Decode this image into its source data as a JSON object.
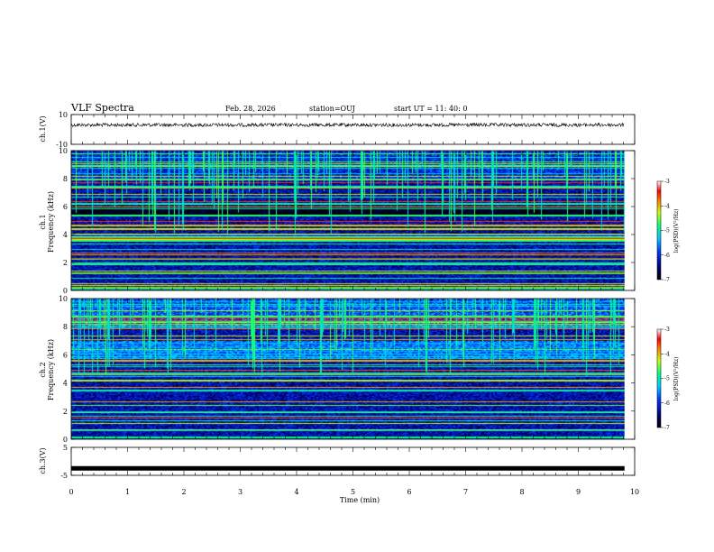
{
  "header": {
    "title": "VLF Spectra",
    "date": "Feb. 28, 2026",
    "station": "station=OUJ",
    "start_ut": "start  UT =   11: 40: 0"
  },
  "chart_data": [
    {
      "type": "line",
      "name": "ch1-waveform",
      "ylabel": "ch.1(V)",
      "ylim": [
        -10,
        10
      ],
      "yticks": [
        "10",
        "-10"
      ],
      "baseline": 3,
      "xlim": [
        0,
        10
      ]
    },
    {
      "type": "heatmap",
      "name": "ch1-spectrogram",
      "ylabel": "ch.1\nFrequency  (kHz)",
      "ylim": [
        0,
        10
      ],
      "yticks": [
        "0",
        "2",
        "4",
        "6",
        "8",
        "10"
      ],
      "xlim": [
        0,
        10
      ],
      "data_end_min": 9.82,
      "colorbar": {
        "label": "log(PSD)(V²/Hz)",
        "range": [
          -7,
          -3
        ],
        "ticks": [
          "-3",
          "-4",
          "-5",
          "-6",
          "-7"
        ]
      }
    },
    {
      "type": "heatmap",
      "name": "ch2-spectrogram",
      "ylabel": "ch.2\nFrequency  (kHz)",
      "ylim": [
        0,
        10
      ],
      "yticks": [
        "0",
        "2",
        "4",
        "6",
        "8",
        "10"
      ],
      "xlim": [
        0,
        10
      ],
      "data_end_min": 9.82,
      "colorbar": {
        "label": "log(PSD)(V²/Hz)",
        "range": [
          -7,
          -3
        ],
        "ticks": [
          "-3",
          "-4",
          "-5",
          "-6",
          "-7"
        ]
      }
    },
    {
      "type": "line",
      "name": "ch3-waveform",
      "ylabel": "ch.3(V)",
      "ylim": [
        -5,
        5
      ],
      "yticks": [
        "5",
        "-5"
      ],
      "baseline": -2.5,
      "xlim": [
        0,
        10
      ]
    }
  ],
  "xaxis": {
    "label": "Time  (min)",
    "ticks": [
      "0",
      "1",
      "2",
      "3",
      "4",
      "5",
      "6",
      "7",
      "8",
      "9",
      "10"
    ]
  },
  "colors": {
    "background": "#000e6e",
    "axis": "#000000"
  }
}
